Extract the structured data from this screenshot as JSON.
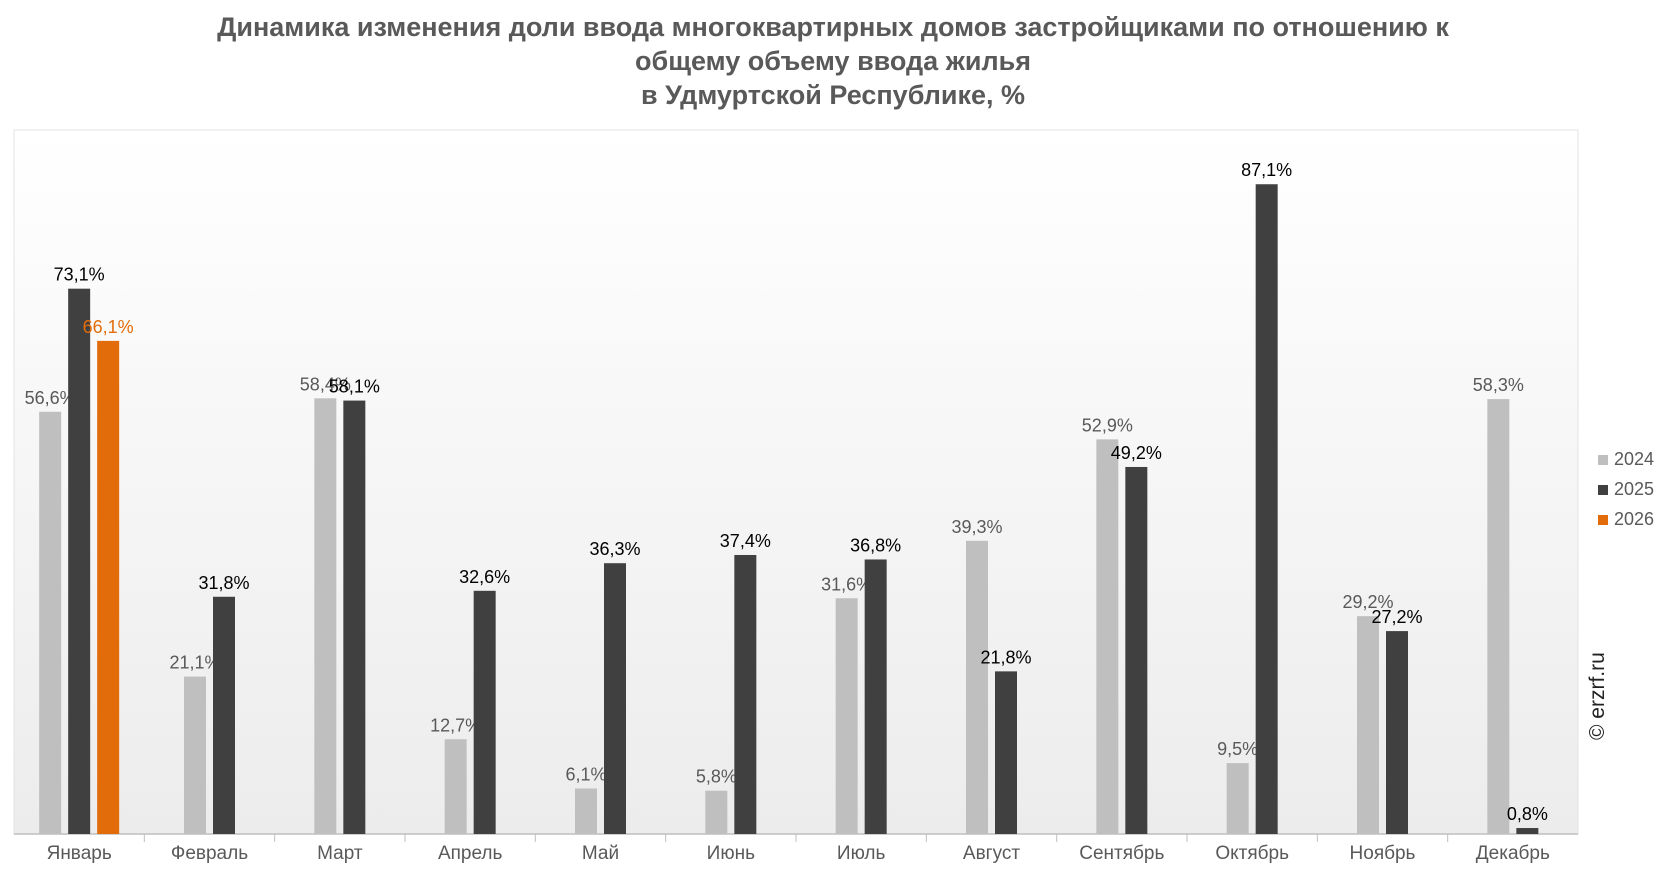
{
  "title_lines": [
    "Динамика изменения доли ввода многоквартирных домов застройщиками по отношению к",
    "общему объему ввода жилья",
    "в Удмуртской Республике, %"
  ],
  "watermark": "© erzrf.ru",
  "colors": {
    "2024": "#bfbfbf",
    "2025": "#404040",
    "2026": "#e36c0a"
  },
  "chart_data": {
    "type": "bar",
    "title": "Динамика изменения доли ввода многоквартирных домов застройщиками по отношению к общему объему ввода жилья в Удмуртской Республике, %",
    "categories": [
      "Январь",
      "Февраль",
      "Март",
      "Апрель",
      "Май",
      "Июнь",
      "Июль",
      "Август",
      "Сентябрь",
      "Октябрь",
      "Ноябрь",
      "Декабрь"
    ],
    "series": [
      {
        "name": "2024",
        "values": [
          56.6,
          21.1,
          58.4,
          12.7,
          6.1,
          5.8,
          31.6,
          39.3,
          52.9,
          9.5,
          29.2,
          58.3
        ],
        "labels": [
          "56,6%",
          "21,1%",
          "58,4%",
          "12,7%",
          "6,1%",
          "5,8%",
          "31,6%",
          "39,3%",
          "52,9%",
          "9,5%",
          "29,2%",
          "58,3%"
        ]
      },
      {
        "name": "2025",
        "values": [
          73.1,
          31.8,
          58.1,
          32.6,
          36.3,
          37.4,
          36.8,
          21.8,
          49.2,
          87.1,
          27.2,
          0.8
        ],
        "labels": [
          "73,1%",
          "31,8%",
          "58,1%",
          "32,6%",
          "36,3%",
          "37,4%",
          "36,8%",
          "21,8%",
          "49,2%",
          "87,1%",
          "27,2%",
          "0,8%"
        ]
      },
      {
        "name": "2026",
        "values": [
          66.1,
          null,
          null,
          null,
          null,
          null,
          null,
          null,
          null,
          null,
          null,
          null
        ],
        "labels": [
          "66,1%",
          "",
          "",
          "",
          "",
          "",
          "",
          "",
          "",
          "",
          "",
          ""
        ]
      }
    ],
    "ylim": [
      0,
      100
    ],
    "grid": false,
    "legend_position": "right",
    "xlabel": "",
    "ylabel": ""
  }
}
